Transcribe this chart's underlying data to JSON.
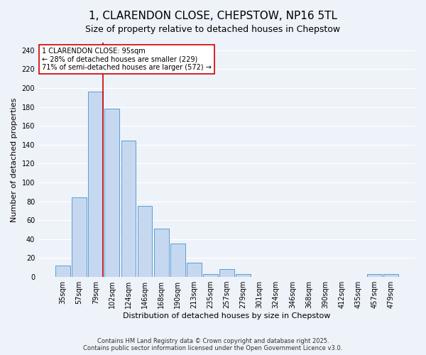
{
  "title": "1, CLARENDON CLOSE, CHEPSTOW, NP16 5TL",
  "subtitle": "Size of property relative to detached houses in Chepstow",
  "xlabel": "Distribution of detached houses by size in Chepstow",
  "ylabel": "Number of detached properties",
  "bar_labels": [
    "35sqm",
    "57sqm",
    "79sqm",
    "102sqm",
    "124sqm",
    "146sqm",
    "168sqm",
    "190sqm",
    "213sqm",
    "235sqm",
    "257sqm",
    "279sqm",
    "301sqm",
    "324sqm",
    "346sqm",
    "368sqm",
    "390sqm",
    "412sqm",
    "435sqm",
    "457sqm",
    "479sqm"
  ],
  "bar_values": [
    12,
    84,
    196,
    178,
    144,
    75,
    51,
    35,
    15,
    3,
    8,
    3,
    0,
    0,
    0,
    0,
    0,
    0,
    0,
    3,
    3
  ],
  "bar_color": "#c5d8f0",
  "bar_edge_color": "#5a9fd4",
  "annotation_title": "1 CLARENDON CLOSE: 95sqm",
  "annotation_line1": "← 28% of detached houses are smaller (229)",
  "annotation_line2": "71% of semi-detached houses are larger (572) →",
  "vline_color": "#cc0000",
  "ylim": [
    0,
    248
  ],
  "yticks": [
    0,
    20,
    40,
    60,
    80,
    100,
    120,
    140,
    160,
    180,
    200,
    220,
    240
  ],
  "footnote1": "Contains HM Land Registry data © Crown copyright and database right 2025.",
  "footnote2": "Contains public sector information licensed under the Open Government Licence v3.0.",
  "bg_color": "#eef2f9",
  "plot_bg_color": "#eef2f9",
  "grid_color": "#ffffff",
  "title_fontsize": 11,
  "subtitle_fontsize": 9,
  "axis_label_fontsize": 8,
  "tick_fontsize": 7,
  "footnote_fontsize": 6
}
